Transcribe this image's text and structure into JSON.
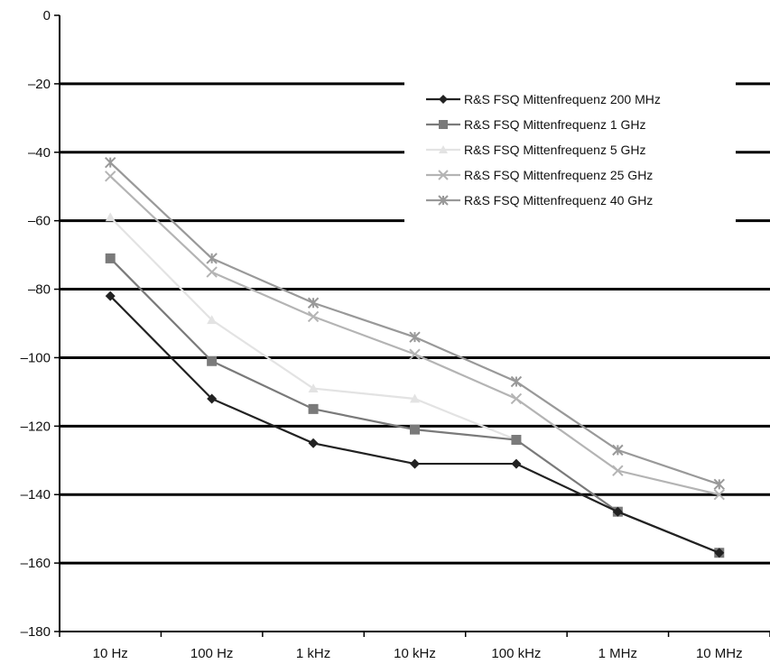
{
  "chart_data": {
    "type": "line",
    "title": "",
    "xlabel": "",
    "ylabel": "",
    "categories": [
      "10 Hz",
      "100 Hz",
      "1 kHz",
      "10 kHz",
      "100 kHz",
      "1 MHz",
      "10 MHz"
    ],
    "ylim": [
      -180,
      0
    ],
    "yticks": [
      0,
      -20,
      -40,
      -60,
      -80,
      -100,
      -120,
      -140,
      -160,
      -180
    ],
    "y_tick_labels": [
      "0",
      "–20",
      "–40",
      "–60",
      "–80",
      "–100",
      "–120",
      "–140",
      "–160",
      "–180"
    ],
    "grid": "horizontal",
    "legend_position": "top-right",
    "series": [
      {
        "name": "R&S FSQ Mittenfrequenz 200 MHz",
        "marker": "diamond",
        "color": "#222222",
        "values": [
          -82,
          -112,
          -125,
          -131,
          -131,
          -145,
          -157
        ]
      },
      {
        "name": "R&S FSQ Mittenfrequenz 1 GHz",
        "marker": "square",
        "color": "#7a7a7a",
        "values": [
          -71,
          -101,
          -115,
          -121,
          -124,
          -145,
          -157
        ]
      },
      {
        "name": "R&S FSQ Mittenfrequenz 5 GHz",
        "marker": "triangle",
        "color": "#e3e3e3",
        "values": [
          -59,
          -89,
          -109,
          -112,
          -124,
          -145,
          -157
        ]
      },
      {
        "name": "R&S FSQ Mittenfrequenz 25 GHz",
        "marker": "x",
        "color": "#b4b4b4",
        "values": [
          -47,
          -75,
          -88,
          -99,
          -112,
          -133,
          -140
        ]
      },
      {
        "name": "R&S FSQ Mittenfrequenz 40 GHz",
        "marker": "star",
        "color": "#999999",
        "values": [
          -43,
          -71,
          -84,
          -94,
          -107,
          -127,
          -137
        ]
      }
    ]
  }
}
